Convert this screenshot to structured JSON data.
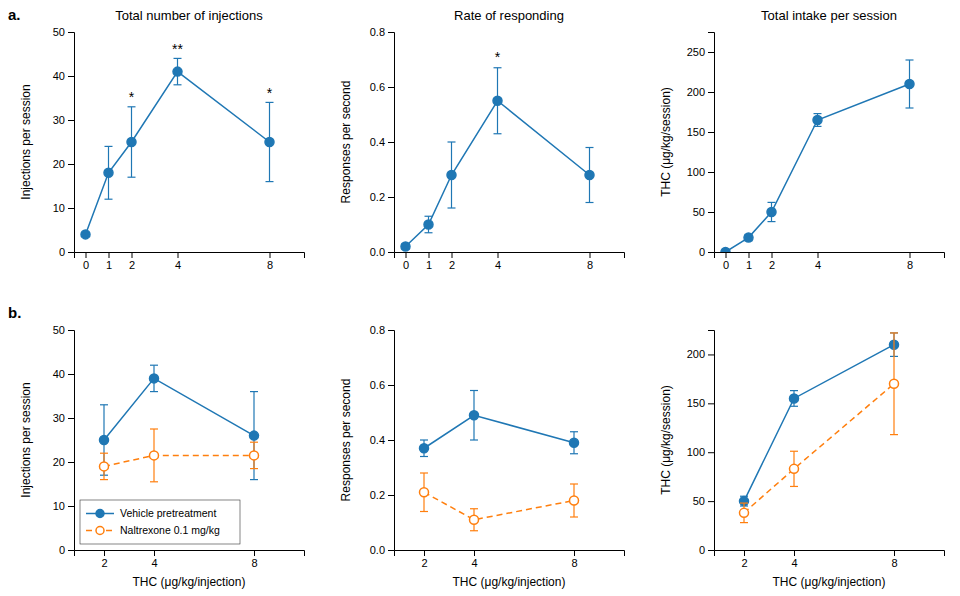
{
  "chart_data": [
    {
      "type": "line",
      "title": "Total number of injections",
      "panel_label": "a.",
      "x": [
        0,
        1,
        2,
        4,
        8
      ],
      "xlim": [
        -0.5,
        9.5
      ],
      "xticks": [
        0,
        1,
        2,
        4,
        8
      ],
      "ylim": [
        0,
        50
      ],
      "yticks": [
        0,
        10,
        20,
        30,
        40,
        50
      ],
      "ylabel": "Injections per session",
      "grid": false,
      "series": [
        {
          "values": [
            4,
            18,
            25,
            41,
            25
          ],
          "errors": [
            0,
            6,
            8,
            3,
            9
          ],
          "marker": "circle",
          "line_style": "solid"
        }
      ],
      "annotations": [
        {
          "x": 2,
          "y": 34,
          "text": "*"
        },
        {
          "x": 4,
          "y": 45,
          "text": "**"
        },
        {
          "x": 8,
          "y": 35,
          "text": "*"
        }
      ]
    },
    {
      "type": "line",
      "title": "Rate of responding",
      "x": [
        0,
        1,
        2,
        4,
        8
      ],
      "xlim": [
        -0.5,
        9.5
      ],
      "xticks": [
        0,
        1,
        2,
        4,
        8
      ],
      "ylim": [
        0.0,
        0.8
      ],
      "yticks": [
        {
          "value": 0.0,
          "label": "0.0"
        },
        0.2,
        0.4,
        0.6,
        0.8
      ],
      "ylabel": "Responses per second",
      "grid": false,
      "series": [
        {
          "values": [
            0.02,
            0.1,
            0.28,
            0.55,
            0.28
          ],
          "errors": [
            0.01,
            0.03,
            0.12,
            0.12,
            0.1
          ],
          "marker": "circle",
          "line_style": "solid"
        }
      ],
      "annotations": [
        {
          "x": 4,
          "y": 0.69,
          "text": "*"
        }
      ]
    },
    {
      "type": "line",
      "title": "Total intake per session",
      "x": [
        0,
        1,
        2,
        4,
        8
      ],
      "xlim": [
        -0.5,
        9.5
      ],
      "xticks": [
        0,
        1,
        2,
        4,
        8
      ],
      "ylim": [
        0,
        275
      ],
      "yticks": [
        0,
        50,
        100,
        150,
        200,
        250
      ],
      "ylabel": "THC (μg/kg/session)",
      "grid": false,
      "series": [
        {
          "values": [
            0,
            18,
            50,
            165,
            210
          ],
          "errors": [
            0,
            4,
            12,
            8,
            30
          ],
          "marker": "circle",
          "line_style": "solid"
        }
      ]
    },
    {
      "type": "line",
      "panel_label": "b.",
      "x": [
        2,
        4,
        8
      ],
      "xlim": [
        0.8,
        10.0
      ],
      "xticks": [
        2,
        4,
        8
      ],
      "ylim": [
        0,
        50
      ],
      "yticks": [
        0,
        10,
        20,
        30,
        40,
        50
      ],
      "xlabel": "THC (μg/kg/injection)",
      "ylabel": "Injections per session",
      "grid": false,
      "legend": "lower left",
      "series": [
        {
          "name": "Vehicle pretreatment",
          "values": [
            25,
            39,
            26
          ],
          "errors": [
            8,
            3,
            10
          ],
          "marker": "circle",
          "line_style": "solid"
        },
        {
          "name": "Naltrexone 0.1 mg/kg",
          "values": [
            19,
            21.5,
            21.5
          ],
          "errors": [
            3,
            6,
            3
          ],
          "marker": "circle-open",
          "line_style": "dashed"
        }
      ]
    },
    {
      "type": "line",
      "x": [
        2,
        4,
        8
      ],
      "xlim": [
        0.8,
        10.0
      ],
      "xticks": [
        2,
        4,
        8
      ],
      "ylim": [
        0.0,
        0.8
      ],
      "yticks": [
        {
          "value": 0.0,
          "label": "0.0"
        },
        0.2,
        0.4,
        0.6,
        0.8
      ],
      "xlabel": "THC (μg/kg/injection)",
      "ylabel": "Responses per second",
      "grid": false,
      "series": [
        {
          "values": [
            0.37,
            0.49,
            0.39
          ],
          "errors": [
            0.03,
            0.09,
            0.04
          ],
          "marker": "circle",
          "line_style": "solid"
        },
        {
          "values": [
            0.21,
            0.11,
            0.18
          ],
          "errors": [
            0.07,
            0.04,
            0.06
          ],
          "marker": "circle-open",
          "line_style": "dashed"
        }
      ]
    },
    {
      "type": "line",
      "x": [
        2,
        4,
        8
      ],
      "xlim": [
        0.8,
        10.0
      ],
      "xticks": [
        2,
        4,
        8
      ],
      "ylim": [
        0,
        225
      ],
      "yticks": [
        0,
        50,
        100,
        150,
        200
      ],
      "xlabel": "THC (μg/kg/injection)",
      "ylabel": "THC (μg/kg/session)",
      "grid": false,
      "series": [
        {
          "values": [
            50,
            155,
            210
          ],
          "errors": [
            5,
            8,
            12
          ],
          "marker": "circle",
          "line_style": "solid"
        },
        {
          "values": [
            38,
            83,
            170
          ],
          "errors": [
            10,
            18,
            52
          ],
          "marker": "circle-open",
          "line_style": "dashed"
        }
      ]
    }
  ]
}
